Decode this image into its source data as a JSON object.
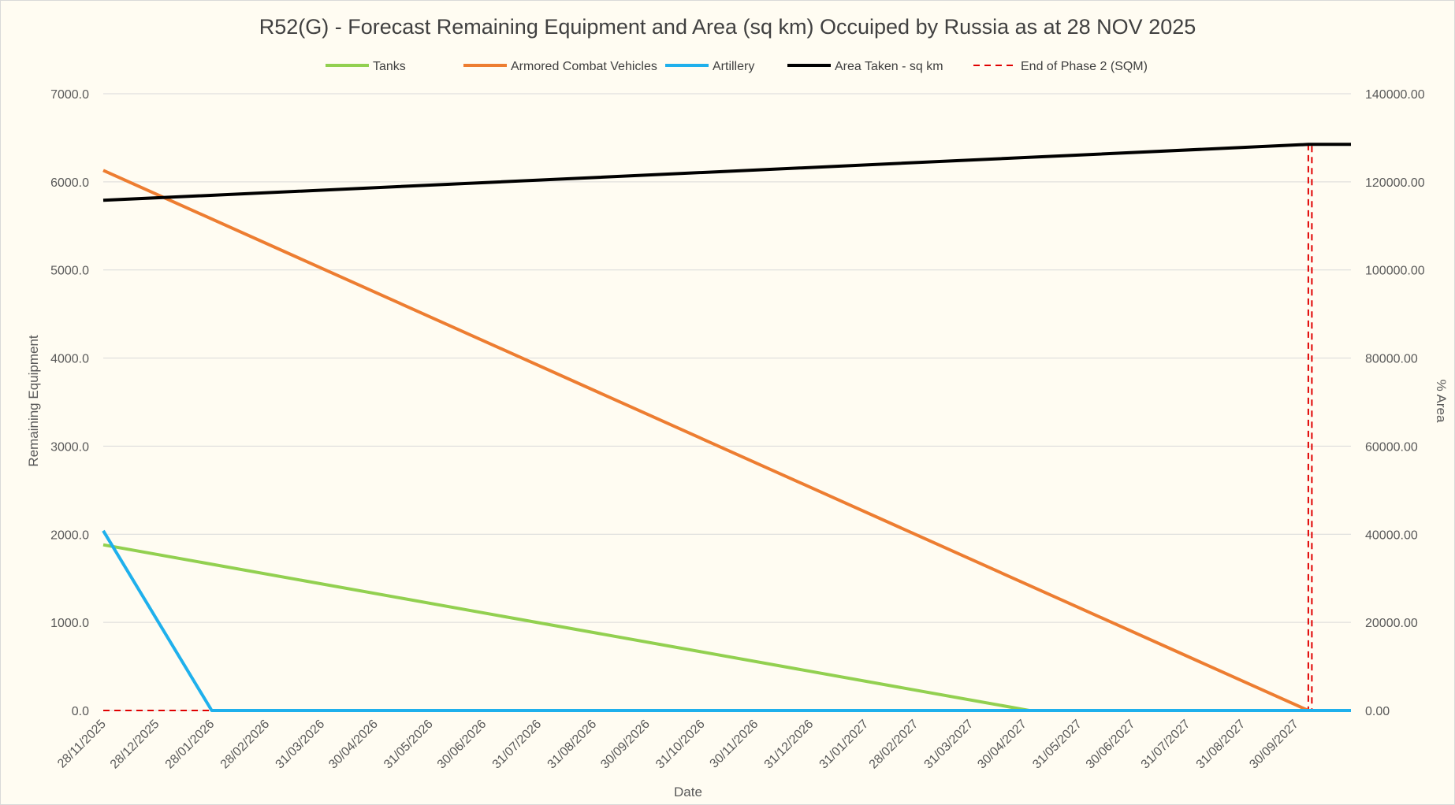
{
  "chart_data": {
    "type": "line",
    "title": "R52(G) - Forecast Remaining Equipment and Area (sq km) Occuiped by Russia as at 28 NOV 2025",
    "xlabel": "Date",
    "ylabel": "Remaining Equipment",
    "y2label": "% Area",
    "x_range": [
      "28/11/2025",
      "31/10/2027"
    ],
    "ylim": [
      0,
      7000
    ],
    "y2lim": [
      0,
      140000
    ],
    "y_ticks": [
      "0.0",
      "1000.0",
      "2000.0",
      "3000.0",
      "4000.0",
      "5000.0",
      "6000.0",
      "7000.0"
    ],
    "y2_ticks": [
      "0.00",
      "20000.00",
      "40000.00",
      "60000.00",
      "80000.00",
      "100000.00",
      "120000.00",
      "140000.00"
    ],
    "x_ticks": [
      "28/11/2025",
      "28/12/2025",
      "28/01/2026",
      "28/02/2026",
      "31/03/2026",
      "30/04/2026",
      "31/05/2026",
      "30/06/2026",
      "31/07/2026",
      "31/08/2026",
      "30/09/2026",
      "31/10/2026",
      "30/11/2026",
      "31/12/2026",
      "31/01/2027",
      "28/02/2027",
      "31/03/2027",
      "30/04/2027",
      "31/05/2027",
      "30/06/2027",
      "31/07/2027",
      "31/08/2027",
      "30/09/2027"
    ],
    "gridlines": true,
    "legend_position": "top",
    "series": [
      {
        "name": "Tanks",
        "axis": "left",
        "color": "#92d050",
        "style": "solid",
        "points": [
          [
            "28/11/2025",
            1880
          ],
          [
            "03/05/2027",
            0
          ],
          [
            "31/10/2027",
            0
          ]
        ]
      },
      {
        "name": "Armored Combat Vehicles",
        "axis": "left",
        "color": "#ed7d31",
        "style": "solid",
        "points": [
          [
            "28/11/2025",
            6130
          ],
          [
            "07/10/2027",
            0
          ],
          [
            "31/10/2027",
            0
          ]
        ]
      },
      {
        "name": "Artillery",
        "axis": "left",
        "color": "#1fb0ec",
        "style": "solid",
        "points": [
          [
            "28/11/2025",
            2040
          ],
          [
            "28/01/2026",
            0
          ],
          [
            "31/10/2027",
            0
          ]
        ]
      },
      {
        "name": "Area Taken - sq km",
        "axis": "right",
        "color": "#000000",
        "style": "solid",
        "points": [
          [
            "28/11/2025",
            115800
          ],
          [
            "07/10/2027",
            128500
          ],
          [
            "31/10/2027",
            128500
          ]
        ]
      },
      {
        "name": "End of Phase 2 (SQM)",
        "axis": "right",
        "color": "#e00000",
        "style": "dashed",
        "points": [
          [
            "28/11/2025",
            0
          ],
          [
            "07/10/2027",
            0
          ],
          [
            "07/10/2027",
            128500
          ],
          [
            "09/10/2027",
            128500
          ],
          [
            "09/10/2027",
            0
          ]
        ]
      }
    ]
  }
}
